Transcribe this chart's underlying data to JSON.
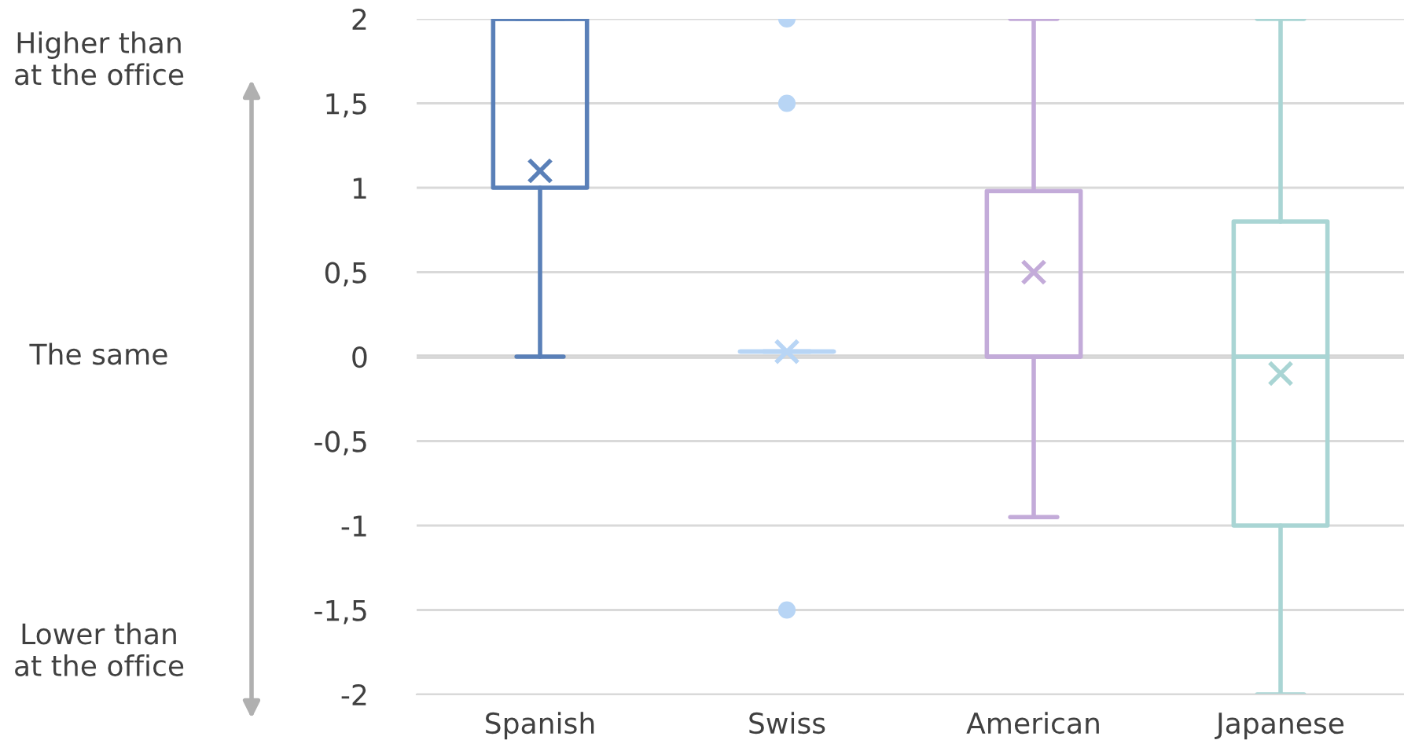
{
  "chart_data": {
    "type": "box",
    "categories": [
      "Spanish",
      "Swiss",
      "American",
      "Japanese"
    ],
    "colors": [
      "#5a80b8",
      "#b8d5f5",
      "#c3abd9",
      "#a9d5d4"
    ],
    "boxes": [
      {
        "low": 0,
        "q1": 1,
        "median": 2,
        "q3": 2,
        "high": 2,
        "mean": 1.1
      },
      {
        "low": 0.03,
        "q1": 0.03,
        "median": 0.03,
        "q3": 0.03,
        "high": 0.03,
        "mean": 0.03,
        "outliers": [
          2,
          1.5,
          -1.5
        ]
      },
      {
        "low": -0.95,
        "q1": 0,
        "median": 0,
        "q3": 0.98,
        "high": 2,
        "mean": 0.5
      },
      {
        "low": -2,
        "q1": -1,
        "median": 0,
        "q3": 0.8,
        "high": 2,
        "mean": -0.1
      }
    ],
    "ylim": [
      -2,
      2
    ],
    "yticks": [
      {
        "value": 2,
        "label": "2"
      },
      {
        "value": 1.5,
        "label": "1,5"
      },
      {
        "value": 1,
        "label": "1"
      },
      {
        "value": 0.5,
        "label": "0,5"
      },
      {
        "value": 0,
        "label": "0"
      },
      {
        "value": -0.5,
        "label": "-0,5"
      },
      {
        "value": -1,
        "label": "-1"
      },
      {
        "value": -1.5,
        "label": "-1,5"
      },
      {
        "value": -2,
        "label": "-2"
      }
    ],
    "grid": "y",
    "annotations": [
      "Higher than\nat the office",
      "The same",
      "Lower than\nat the office"
    ]
  }
}
